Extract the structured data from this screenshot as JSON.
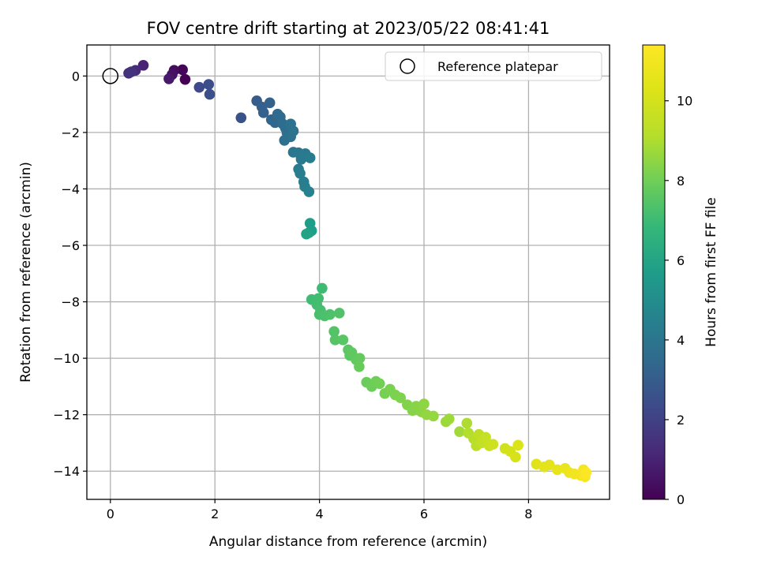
{
  "chart_data": {
    "type": "scatter",
    "title": "FOV centre drift starting at 2023/05/22 08:41:41",
    "xlabel": "Angular distance from reference (arcmin)",
    "ylabel": "Rotation from reference (arcmin)",
    "xlim": [
      -0.45,
      9.55
    ],
    "ylim": [
      -15.0,
      1.1
    ],
    "xticks": [
      0,
      2,
      4,
      6,
      8
    ],
    "yticks": [
      0,
      -2,
      -4,
      -6,
      -8,
      -10,
      -12,
      -14
    ],
    "xtick_labels": [
      "0",
      "2",
      "4",
      "6",
      "8"
    ],
    "ytick_labels": [
      "0",
      "−2",
      "−4",
      "−6",
      "−8",
      "−10",
      "−12",
      "−14"
    ],
    "grid": true,
    "colormap": "viridis",
    "colorbar": {
      "label": "Hours from first FF file",
      "range": [
        0,
        11.4
      ],
      "ticks": [
        0,
        2,
        4,
        6,
        8,
        10
      ],
      "tick_labels": [
        "0",
        "2",
        "4",
        "6",
        "8",
        "10"
      ]
    },
    "legend": {
      "placement": "upper-right",
      "entries": [
        "Reference platepar"
      ]
    },
    "reference_point": {
      "x": 0,
      "y": 0
    },
    "points": [
      {
        "x": 1.43,
        "y": -0.12,
        "t": 0.0
      },
      {
        "x": 1.38,
        "y": 0.22,
        "t": 0.1
      },
      {
        "x": 1.22,
        "y": 0.2,
        "t": 0.3
      },
      {
        "x": 1.18,
        "y": 0.05,
        "t": 0.5
      },
      {
        "x": 1.12,
        "y": -0.1,
        "t": 0.7
      },
      {
        "x": 0.63,
        "y": 0.38,
        "t": 1.0
      },
      {
        "x": 0.48,
        "y": 0.2,
        "t": 1.2
      },
      {
        "x": 0.35,
        "y": 0.1,
        "t": 1.4
      },
      {
        "x": 0.4,
        "y": 0.15,
        "t": 1.5
      },
      {
        "x": 1.7,
        "y": -0.4,
        "t": 2.3
      },
      {
        "x": 1.88,
        "y": -0.3,
        "t": 2.4
      },
      {
        "x": 1.9,
        "y": -0.65,
        "t": 2.5
      },
      {
        "x": 2.5,
        "y": -1.48,
        "t": 2.6
      },
      {
        "x": 2.8,
        "y": -0.88,
        "t": 3.0
      },
      {
        "x": 2.9,
        "y": -1.1,
        "t": 3.1
      },
      {
        "x": 2.93,
        "y": -1.3,
        "t": 3.15
      },
      {
        "x": 3.05,
        "y": -0.95,
        "t": 3.2
      },
      {
        "x": 3.08,
        "y": -1.55,
        "t": 3.3
      },
      {
        "x": 3.15,
        "y": -1.65,
        "t": 3.4
      },
      {
        "x": 3.2,
        "y": -1.35,
        "t": 3.5
      },
      {
        "x": 3.25,
        "y": -1.45,
        "t": 3.55
      },
      {
        "x": 3.3,
        "y": -1.7,
        "t": 3.6
      },
      {
        "x": 3.35,
        "y": -1.85,
        "t": 3.65
      },
      {
        "x": 3.38,
        "y": -2.02,
        "t": 3.7
      },
      {
        "x": 3.33,
        "y": -2.28,
        "t": 3.75
      },
      {
        "x": 3.45,
        "y": -2.15,
        "t": 3.8
      },
      {
        "x": 3.45,
        "y": -1.7,
        "t": 3.85
      },
      {
        "x": 3.5,
        "y": -1.95,
        "t": 3.9
      },
      {
        "x": 3.5,
        "y": -2.7,
        "t": 4.0
      },
      {
        "x": 3.6,
        "y": -2.72,
        "t": 4.1
      },
      {
        "x": 3.65,
        "y": -2.95,
        "t": 4.15
      },
      {
        "x": 3.73,
        "y": -2.75,
        "t": 4.2
      },
      {
        "x": 3.82,
        "y": -2.9,
        "t": 4.25
      },
      {
        "x": 3.6,
        "y": -3.3,
        "t": 4.3
      },
      {
        "x": 3.63,
        "y": -3.45,
        "t": 4.35
      },
      {
        "x": 3.7,
        "y": -3.75,
        "t": 4.4
      },
      {
        "x": 3.72,
        "y": -3.92,
        "t": 4.45
      },
      {
        "x": 3.8,
        "y": -4.1,
        "t": 4.5
      },
      {
        "x": 3.82,
        "y": -5.22,
        "t": 5.6
      },
      {
        "x": 3.85,
        "y": -5.48,
        "t": 5.7
      },
      {
        "x": 3.8,
        "y": -5.55,
        "t": 5.8
      },
      {
        "x": 3.75,
        "y": -5.6,
        "t": 5.9
      },
      {
        "x": 4.05,
        "y": -7.52,
        "t": 7.0
      },
      {
        "x": 3.85,
        "y": -7.92,
        "t": 7.05
      },
      {
        "x": 3.98,
        "y": -7.88,
        "t": 7.1
      },
      {
        "x": 3.95,
        "y": -8.1,
        "t": 7.15
      },
      {
        "x": 4.02,
        "y": -8.3,
        "t": 7.2
      },
      {
        "x": 4.0,
        "y": -8.45,
        "t": 7.25
      },
      {
        "x": 4.1,
        "y": -8.5,
        "t": 7.3
      },
      {
        "x": 4.2,
        "y": -8.45,
        "t": 7.35
      },
      {
        "x": 4.38,
        "y": -8.4,
        "t": 7.4
      },
      {
        "x": 4.28,
        "y": -9.05,
        "t": 7.45
      },
      {
        "x": 4.3,
        "y": -9.35,
        "t": 7.5
      },
      {
        "x": 4.45,
        "y": -9.35,
        "t": 7.55
      },
      {
        "x": 4.55,
        "y": -9.7,
        "t": 7.6
      },
      {
        "x": 4.58,
        "y": -9.9,
        "t": 7.65
      },
      {
        "x": 4.62,
        "y": -9.8,
        "t": 7.7
      },
      {
        "x": 4.7,
        "y": -10.05,
        "t": 7.75
      },
      {
        "x": 4.77,
        "y": -10.0,
        "t": 7.8
      },
      {
        "x": 4.76,
        "y": -10.3,
        "t": 7.85
      },
      {
        "x": 4.9,
        "y": -10.85,
        "t": 7.9
      },
      {
        "x": 5.0,
        "y": -11.0,
        "t": 7.95
      },
      {
        "x": 5.08,
        "y": -10.82,
        "t": 8.0
      },
      {
        "x": 5.15,
        "y": -10.9,
        "t": 8.05
      },
      {
        "x": 5.25,
        "y": -11.25,
        "t": 8.1
      },
      {
        "x": 5.35,
        "y": -11.1,
        "t": 8.15
      },
      {
        "x": 5.45,
        "y": -11.3,
        "t": 8.2
      },
      {
        "x": 5.55,
        "y": -11.4,
        "t": 8.25
      },
      {
        "x": 5.68,
        "y": -11.65,
        "t": 8.3
      },
      {
        "x": 5.78,
        "y": -11.85,
        "t": 8.35
      },
      {
        "x": 5.85,
        "y": -11.7,
        "t": 8.4
      },
      {
        "x": 5.95,
        "y": -11.9,
        "t": 8.45
      },
      {
        "x": 6.0,
        "y": -11.62,
        "t": 8.5
      },
      {
        "x": 6.05,
        "y": -12.0,
        "t": 8.55
      },
      {
        "x": 6.18,
        "y": -12.05,
        "t": 8.6
      },
      {
        "x": 6.42,
        "y": -12.25,
        "t": 8.7
      },
      {
        "x": 6.48,
        "y": -12.15,
        "t": 8.75
      },
      {
        "x": 6.68,
        "y": -12.6,
        "t": 8.8
      },
      {
        "x": 6.82,
        "y": -12.3,
        "t": 9.0
      },
      {
        "x": 6.85,
        "y": -12.65,
        "t": 9.1
      },
      {
        "x": 6.95,
        "y": -12.85,
        "t": 9.2
      },
      {
        "x": 7.0,
        "y": -13.1,
        "t": 9.3
      },
      {
        "x": 7.05,
        "y": -12.7,
        "t": 9.4
      },
      {
        "x": 7.1,
        "y": -13.0,
        "t": 9.5
      },
      {
        "x": 7.18,
        "y": -12.8,
        "t": 9.6
      },
      {
        "x": 7.25,
        "y": -13.1,
        "t": 9.7
      },
      {
        "x": 7.32,
        "y": -13.05,
        "t": 9.8
      },
      {
        "x": 7.55,
        "y": -13.2,
        "t": 9.9
      },
      {
        "x": 7.65,
        "y": -13.3,
        "t": 10.0
      },
      {
        "x": 7.75,
        "y": -13.5,
        "t": 10.1
      },
      {
        "x": 7.8,
        "y": -13.08,
        "t": 10.2
      },
      {
        "x": 8.15,
        "y": -13.75,
        "t": 10.4
      },
      {
        "x": 8.3,
        "y": -13.85,
        "t": 10.5
      },
      {
        "x": 8.4,
        "y": -13.78,
        "t": 10.55
      },
      {
        "x": 8.55,
        "y": -13.95,
        "t": 10.65
      },
      {
        "x": 8.7,
        "y": -13.9,
        "t": 10.75
      },
      {
        "x": 8.78,
        "y": -14.05,
        "t": 10.85
      },
      {
        "x": 8.88,
        "y": -14.1,
        "t": 10.95
      },
      {
        "x": 9.0,
        "y": -14.15,
        "t": 11.05
      },
      {
        "x": 9.05,
        "y": -13.95,
        "t": 11.15
      },
      {
        "x": 9.08,
        "y": -14.2,
        "t": 11.25
      },
      {
        "x": 9.1,
        "y": -14.05,
        "t": 11.35
      }
    ]
  }
}
